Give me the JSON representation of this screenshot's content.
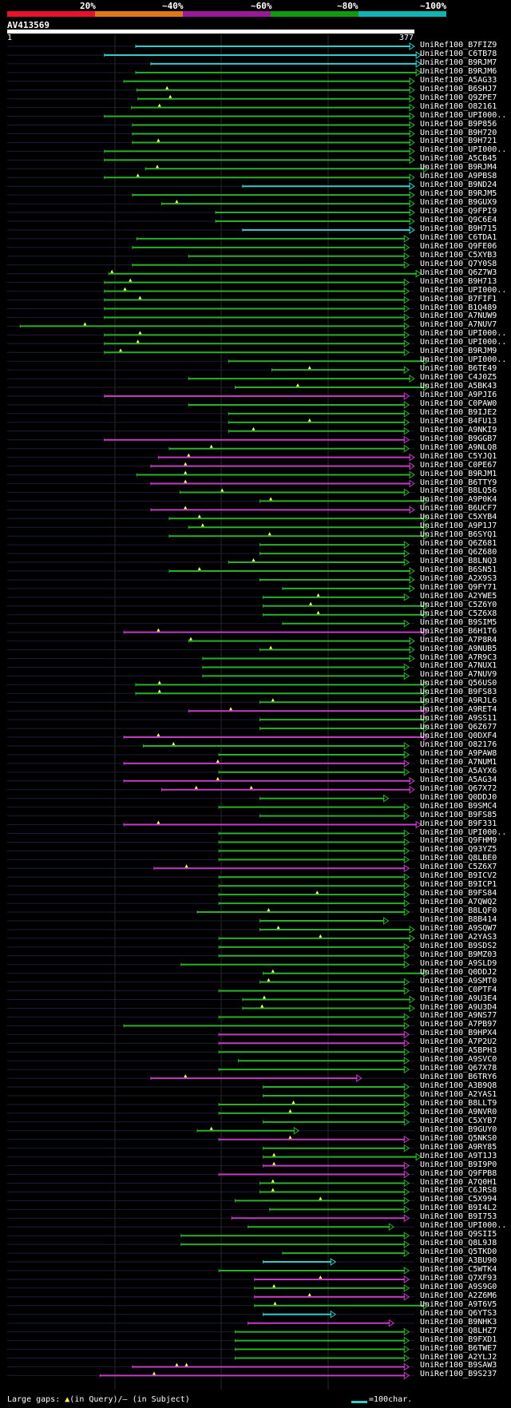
{
  "scale": {
    "labels": [
      "20%",
      "~40%",
      "~60%",
      "~80%",
      "~100%"
    ],
    "colors": [
      "#e8132a",
      "#e07818",
      "#9a199a",
      "#109a10",
      "#10b4b4"
    ]
  },
  "query": {
    "id": "AV413569",
    "start": "1",
    "end": "377"
  },
  "colors": {
    "green": "#2ab02a",
    "magenta": "#c43cc4",
    "cyan": "#33cccc",
    "gap": "#ffff66"
  },
  "hits": [
    {
      "label": "UniRef100_B7FIZ9",
      "s": 119,
      "e": 377,
      "c": "cyan",
      "a": []
    },
    {
      "label": "UniRef100_C6TB78",
      "s": 90,
      "e": 383,
      "c": "cyan",
      "a": []
    },
    {
      "label": "UniRef100_B9RJM7",
      "s": 133,
      "e": 383,
      "c": "cyan",
      "a": []
    },
    {
      "label": "UniRef100_B9RJM6",
      "s": 119,
      "e": 383,
      "c": "green",
      "a": []
    },
    {
      "label": "UniRef100_A5AG33",
      "s": 108,
      "e": 377,
      "c": "green",
      "a": []
    },
    {
      "label": "UniRef100_B6SHJ7",
      "s": 120,
      "e": 377,
      "c": "green",
      "a": [
        148
      ]
    },
    {
      "label": "UniRef100_Q9ZPE7",
      "s": 121,
      "e": 377,
      "c": "green",
      "a": [
        151
      ]
    },
    {
      "label": "UniRef100_O82161",
      "s": 115,
      "e": 377,
      "c": "green",
      "a": [
        141
      ]
    },
    {
      "label": "UniRef100_UPI000..",
      "s": 90,
      "e": 377,
      "c": "green",
      "a": []
    },
    {
      "label": "UniRef100_B9P856",
      "s": 116,
      "e": 377,
      "c": "green",
      "a": []
    },
    {
      "label": "UniRef100_B9H720",
      "s": 116,
      "e": 377,
      "c": "green",
      "a": []
    },
    {
      "label": "UniRef100_B9H721",
      "s": 116,
      "e": 377,
      "c": "green",
      "a": [
        140
      ]
    },
    {
      "label": "UniRef100_UPI000..",
      "s": 90,
      "e": 377,
      "c": "green",
      "a": []
    },
    {
      "label": "UniRef100_A5CB45",
      "s": 90,
      "e": 377,
      "c": "green",
      "a": []
    },
    {
      "label": "UniRef100_B9RJM4",
      "s": 128,
      "e": 390,
      "c": "green",
      "a": [
        139
      ]
    },
    {
      "label": "UniRef100_A9PBS8",
      "s": 90,
      "e": 377,
      "c": "green",
      "a": [
        121
      ]
    },
    {
      "label": "UniRef100_B9ND24",
      "s": 218,
      "e": 377,
      "c": "cyan",
      "a": []
    },
    {
      "label": "UniRef100_B9RJM5",
      "s": 116,
      "e": 377,
      "c": "green",
      "a": []
    },
    {
      "label": "UniRef100_B9GUX9",
      "s": 143,
      "e": 377,
      "c": "green",
      "a": [
        157
      ]
    },
    {
      "label": "UniRef100_Q9FPI9",
      "s": 193,
      "e": 377,
      "c": "green",
      "a": []
    },
    {
      "label": "UniRef100_Q9C6E4",
      "s": 193,
      "e": 377,
      "c": "green",
      "a": []
    },
    {
      "label": "UniRef100_B9H715",
      "s": 218,
      "e": 377,
      "c": "cyan",
      "a": []
    },
    {
      "label": "UniRef100_C6TDA1",
      "s": 120,
      "e": 372,
      "c": "green",
      "a": []
    },
    {
      "label": "UniRef100_Q9FE06",
      "s": 116,
      "e": 372,
      "c": "green",
      "a": []
    },
    {
      "label": "UniRef100_C5XYB3",
      "s": 168,
      "e": 372,
      "c": "green",
      "a": []
    },
    {
      "label": "UniRef100_Q7Y0S8",
      "s": 116,
      "e": 372,
      "c": "green",
      "a": []
    },
    {
      "label": "UniRef100_Q6Z7W3",
      "s": 94,
      "e": 383,
      "c": "green",
      "a": [
        97
      ]
    },
    {
      "label": "UniRef100_B9H713",
      "s": 90,
      "e": 372,
      "c": "green",
      "a": [
        114
      ]
    },
    {
      "label": "UniRef100_UPI000..",
      "s": 90,
      "e": 372,
      "c": "green",
      "a": [
        109
      ]
    },
    {
      "label": "UniRef100_B7FIF1",
      "s": 90,
      "e": 372,
      "c": "green",
      "a": [
        123
      ]
    },
    {
      "label": "UniRef100_B1Q489",
      "s": 90,
      "e": 372,
      "c": "green",
      "a": []
    },
    {
      "label": "UniRef100_A7NUW9",
      "s": 90,
      "e": 372,
      "c": "green",
      "a": []
    },
    {
      "label": "UniRef100_A7NUV7",
      "s": 12,
      "e": 372,
      "c": "green",
      "a": [
        72
      ]
    },
    {
      "label": "UniRef100_UPI000..",
      "s": 90,
      "e": 372,
      "c": "green",
      "a": [
        123
      ]
    },
    {
      "label": "UniRef100_UPI000..",
      "s": 90,
      "e": 372,
      "c": "green",
      "a": [
        121
      ]
    },
    {
      "label": "UniRef100_B9RJM9",
      "s": 90,
      "e": 372,
      "c": "green",
      "a": [
        105
      ]
    },
    {
      "label": "UniRef100_UPI000..",
      "s": 205,
      "e": 390,
      "c": "green",
      "a": []
    },
    {
      "label": "UniRef100_B6TE49",
      "s": 245,
      "e": 372,
      "c": "green",
      "a": [
        280
      ]
    },
    {
      "label": "UniRef100_C4J0Z5",
      "s": 168,
      "e": 377,
      "c": "green",
      "a": []
    },
    {
      "label": "UniRef100_A5BK43",
      "s": 211,
      "e": 390,
      "c": "green",
      "a": [
        269
      ]
    },
    {
      "label": "UniRef100_A9PJI6",
      "s": 90,
      "e": 372,
      "c": "magenta",
      "a": []
    },
    {
      "label": "UniRef100_C0PAW0",
      "s": 168,
      "e": 372,
      "c": "green",
      "a": []
    },
    {
      "label": "UniRef100_B9IJE2",
      "s": 205,
      "e": 372,
      "c": "green",
      "a": []
    },
    {
      "label": "UniRef100_B4FU13",
      "s": 205,
      "e": 372,
      "c": "green",
      "a": [
        280
      ]
    },
    {
      "label": "UniRef100_A9NKI9",
      "s": 205,
      "e": 372,
      "c": "green",
      "a": [
        228
      ]
    },
    {
      "label": "UniRef100_B9GGB7",
      "s": 90,
      "e": 372,
      "c": "magenta",
      "a": []
    },
    {
      "label": "UniRef100_A9NLQ8",
      "s": 150,
      "e": 372,
      "c": "green",
      "a": [
        189
      ]
    },
    {
      "label": "UniRef100_C5YJQ1",
      "s": 140,
      "e": 377,
      "c": "magenta",
      "a": [
        168
      ]
    },
    {
      "label": "UniRef100_C0PE67",
      "s": 133,
      "e": 377,
      "c": "magenta",
      "a": [
        165
      ]
    },
    {
      "label": "UniRef100_B9RJM1",
      "s": 120,
      "e": 377,
      "c": "green",
      "a": [
        165
      ]
    },
    {
      "label": "UniRef100_B6TTY9",
      "s": 133,
      "e": 377,
      "c": "magenta",
      "a": [
        165
      ]
    },
    {
      "label": "UniRef100_B8LQ56",
      "s": 160,
      "e": 372,
      "c": "green",
      "a": [
        199
      ]
    },
    {
      "label": "UniRef100_A9P0K4",
      "s": 234,
      "e": 390,
      "c": "green",
      "a": [
        244
      ]
    },
    {
      "label": "UniRef100_B6UCF7",
      "s": 133,
      "e": 377,
      "c": "magenta",
      "a": [
        165
      ]
    },
    {
      "label": "UniRef100_C5XYB4",
      "s": 150,
      "e": 390,
      "c": "green",
      "a": [
        178
      ]
    },
    {
      "label": "UniRef100_A9P1J7",
      "s": 168,
      "e": 390,
      "c": "green",
      "a": [
        181
      ]
    },
    {
      "label": "UniRef100_B6SYQ1",
      "s": 150,
      "e": 390,
      "c": "green",
      "a": [
        243
      ]
    },
    {
      "label": "UniRef100_Q6Z681",
      "s": 234,
      "e": 372,
      "c": "green",
      "a": []
    },
    {
      "label": "UniRef100_Q6Z680",
      "s": 234,
      "e": 372,
      "c": "green",
      "a": []
    },
    {
      "label": "UniRef100_B8LNQ3",
      "s": 205,
      "e": 372,
      "c": "green",
      "a": [
        228
      ]
    },
    {
      "label": "UniRef100_B6SN51",
      "s": 150,
      "e": 377,
      "c": "green",
      "a": [
        178
      ]
    },
    {
      "label": "UniRef100_A2X9S3",
      "s": 234,
      "e": 377,
      "c": "green",
      "a": []
    },
    {
      "label": "UniRef100_Q9FY71",
      "s": 255,
      "e": 377,
      "c": "green",
      "a": []
    },
    {
      "label": "UniRef100_A2YWE5",
      "s": 237,
      "e": 372,
      "c": "green",
      "a": [
        288
      ]
    },
    {
      "label": "UniRef100_C5Z6Y0",
      "s": 237,
      "e": 390,
      "c": "green",
      "a": [
        281
      ]
    },
    {
      "label": "UniRef100_C5Z6X8",
      "s": 237,
      "e": 390,
      "c": "green",
      "a": [
        288
      ]
    },
    {
      "label": "UniRef100_B9SIM5",
      "s": 255,
      "e": 372,
      "c": "green",
      "a": []
    },
    {
      "label": "UniRef100_B6H1T6",
      "s": 108,
      "e": 390,
      "c": "magenta",
      "a": [
        140
      ]
    },
    {
      "label": "UniRef100_A7P8R4",
      "s": 168,
      "e": 377,
      "c": "green",
      "a": [
        170
      ]
    },
    {
      "label": "UniRef100_A9NUB5",
      "s": 234,
      "e": 377,
      "c": "green",
      "a": [
        244
      ]
    },
    {
      "label": "UniRef100_A7R9C3",
      "s": 181,
      "e": 377,
      "c": "green",
      "a": []
    },
    {
      "label": "UniRef100_A7NUX1",
      "s": 181,
      "e": 372,
      "c": "green",
      "a": []
    },
    {
      "label": "UniRef100_A7NUV9",
      "s": 181,
      "e": 372,
      "c": "green",
      "a": []
    },
    {
      "label": "UniRef100_Q56US0",
      "s": 119,
      "e": 390,
      "c": "green",
      "a": [
        141
      ]
    },
    {
      "label": "UniRef100_B9FS83",
      "s": 119,
      "e": 390,
      "c": "green",
      "a": [
        141
      ]
    },
    {
      "label": "UniRef100_A9RJL6",
      "s": 234,
      "e": 390,
      "c": "green",
      "a": [
        246
      ]
    },
    {
      "label": "UniRef100_A9RET4",
      "s": 168,
      "e": 390,
      "c": "magenta",
      "a": [
        207
      ]
    },
    {
      "label": "UniRef100_A9SS11",
      "s": 234,
      "e": 390,
      "c": "green",
      "a": []
    },
    {
      "label": "UniRef100_Q6Z677",
      "s": 234,
      "e": 390,
      "c": "green",
      "a": []
    },
    {
      "label": "UniRef100_Q0DXF4",
      "s": 108,
      "e": 390,
      "c": "magenta",
      "a": [
        140
      ]
    },
    {
      "label": "UniRef100_O82176",
      "s": 126,
      "e": 372,
      "c": "green",
      "a": [
        154
      ]
    },
    {
      "label": "UniRef100_A9PAW8",
      "s": 196,
      "e": 372,
      "c": "green",
      "a": []
    },
    {
      "label": "UniRef100_A7NUM1",
      "s": 108,
      "e": 372,
      "c": "magenta",
      "a": [
        195
      ]
    },
    {
      "label": "UniRef100_A5AYX6",
      "s": 196,
      "e": 372,
      "c": "green",
      "a": []
    },
    {
      "label": "UniRef100_A5AG34",
      "s": 108,
      "e": 377,
      "c": "magenta",
      "a": [
        195
      ]
    },
    {
      "label": "UniRef100_Q67X72",
      "s": 143,
      "e": 377,
      "c": "magenta",
      "a": [
        175,
        226
      ]
    },
    {
      "label": "UniRef100_Q0DDJ0",
      "s": 234,
      "e": 353,
      "c": "green",
      "a": []
    },
    {
      "label": "UniRef100_B9SMC4",
      "s": 196,
      "e": 372,
      "c": "green",
      "a": []
    },
    {
      "label": "UniRef100_B9FS85",
      "s": 234,
      "e": 372,
      "c": "green",
      "a": []
    },
    {
      "label": "UniRef100_B9F331",
      "s": 108,
      "e": 383,
      "c": "magenta",
      "a": [
        140
      ]
    },
    {
      "label": "UniRef100_UPI000..",
      "s": 196,
      "e": 372,
      "c": "green",
      "a": []
    },
    {
      "label": "UniRef100_Q9FHM9",
      "s": 196,
      "e": 372,
      "c": "green",
      "a": []
    },
    {
      "label": "UniRef100_Q93YZ5",
      "s": 196,
      "e": 372,
      "c": "green",
      "a": []
    },
    {
      "label": "UniRef100_Q8LBE0",
      "s": 196,
      "e": 372,
      "c": "green",
      "a": []
    },
    {
      "label": "UniRef100_C5Z6X7",
      "s": 136,
      "e": 372,
      "c": "magenta",
      "a": [
        166
      ]
    },
    {
      "label": "UniRef100_B9ICV2",
      "s": 196,
      "e": 372,
      "c": "green",
      "a": []
    },
    {
      "label": "UniRef100_B9ICP1",
      "s": 196,
      "e": 372,
      "c": "green",
      "a": []
    },
    {
      "label": "UniRef100_B9FS84",
      "s": 196,
      "e": 372,
      "c": "green",
      "a": [
        287
      ]
    },
    {
      "label": "UniRef100_A7QWQ2",
      "s": 196,
      "e": 372,
      "c": "green",
      "a": []
    },
    {
      "label": "UniRef100_B8LQF0",
      "s": 176,
      "e": 372,
      "c": "green",
      "a": [
        242
      ]
    },
    {
      "label": "UniRef100_B8B414",
      "s": 234,
      "e": 353,
      "c": "green",
      "a": []
    },
    {
      "label": "UniRef100_A9SQW7",
      "s": 234,
      "e": 377,
      "c": "green",
      "a": [
        251
      ]
    },
    {
      "label": "UniRef100_A2YAS3",
      "s": 196,
      "e": 377,
      "c": "green",
      "a": [
        290
      ]
    },
    {
      "label": "UniRef100_B9SDS2",
      "s": 196,
      "e": 372,
      "c": "green",
      "a": []
    },
    {
      "label": "UniRef100_B9MZ03",
      "s": 196,
      "e": 372,
      "c": "green",
      "a": []
    },
    {
      "label": "UniRef100_A9SLD9",
      "s": 161,
      "e": 372,
      "c": "green",
      "a": []
    },
    {
      "label": "UniRef100_Q0DDJ2",
      "s": 237,
      "e": 390,
      "c": "green",
      "a": [
        246
      ]
    },
    {
      "label": "UniRef100_A9SMT0",
      "s": 234,
      "e": 372,
      "c": "green",
      "a": [
        242
      ]
    },
    {
      "label": "UniRef100_C0PTF4",
      "s": 196,
      "e": 372,
      "c": "green",
      "a": []
    },
    {
      "label": "UniRef100_A9U3E4",
      "s": 218,
      "e": 377,
      "c": "green",
      "a": [
        238
      ]
    },
    {
      "label": "UniRef100_A9U3D4",
      "s": 218,
      "e": 377,
      "c": "green",
      "a": [
        236
      ]
    },
    {
      "label": "UniRef100_A9NS77",
      "s": 196,
      "e": 372,
      "c": "green",
      "a": []
    },
    {
      "label": "UniRef100_A7PB97",
      "s": 108,
      "e": 372,
      "c": "green",
      "a": []
    },
    {
      "label": "UniRef100_B9HPX4",
      "s": 196,
      "e": 372,
      "c": "magenta",
      "a": []
    },
    {
      "label": "UniRef100_A7P2U2",
      "s": 196,
      "e": 372,
      "c": "magenta",
      "a": []
    },
    {
      "label": "UniRef100_A5BPH3",
      "s": 196,
      "e": 372,
      "c": "green",
      "a": []
    },
    {
      "label": "UniRef100_A9SVC0",
      "s": 214,
      "e": 372,
      "c": "green",
      "a": []
    },
    {
      "label": "UniRef100_Q67X78",
      "s": 196,
      "e": 372,
      "c": "green",
      "a": []
    },
    {
      "label": "UniRef100_B6TRY6",
      "s": 133,
      "e": 328,
      "c": "magenta",
      "a": [
        165
      ]
    },
    {
      "label": "UniRef100_A3B9Q8",
      "s": 237,
      "e": 372,
      "c": "green",
      "a": []
    },
    {
      "label": "UniRef100_A2YAS1",
      "s": 237,
      "e": 372,
      "c": "green",
      "a": []
    },
    {
      "label": "UniRef100_B8LLT9",
      "s": 196,
      "e": 372,
      "c": "green",
      "a": [
        265
      ]
    },
    {
      "label": "UniRef100_A9NVR0",
      "s": 196,
      "e": 372,
      "c": "green",
      "a": [
        262
      ]
    },
    {
      "label": "UniRef100_C5XYB7",
      "s": 237,
      "e": 372,
      "c": "green",
      "a": []
    },
    {
      "label": "UniRef100_B9GUY0",
      "s": 176,
      "e": 270,
      "c": "green",
      "a": [
        189
      ]
    },
    {
      "label": "UniRef100_Q5NKS0",
      "s": 196,
      "e": 372,
      "c": "magenta",
      "a": [
        262
      ]
    },
    {
      "label": "UniRef100_A9RY85",
      "s": 237,
      "e": 372,
      "c": "green",
      "a": []
    },
    {
      "label": "UniRef100_A9T1J3",
      "s": 237,
      "e": 383,
      "c": "green",
      "a": [
        247
      ]
    },
    {
      "label": "UniRef100_B9I9P0",
      "s": 237,
      "e": 372,
      "c": "magenta",
      "a": [
        247
      ]
    },
    {
      "label": "UniRef100_Q9FPB8",
      "s": 196,
      "e": 372,
      "c": "magenta",
      "a": []
    },
    {
      "label": "UniRef100_A7Q0H1",
      "s": 234,
      "e": 372,
      "c": "green",
      "a": [
        246
      ]
    },
    {
      "label": "UniRef100_C6JRS8",
      "s": 234,
      "e": 372,
      "c": "green",
      "a": [
        246
      ]
    },
    {
      "label": "UniRef100_C5X994",
      "s": 211,
      "e": 372,
      "c": "green",
      "a": [
        290
      ]
    },
    {
      "label": "UniRef100_B9I4L2",
      "s": 243,
      "e": 372,
      "c": "green",
      "a": []
    },
    {
      "label": "UniRef100_B9I753",
      "s": 208,
      "e": 372,
      "c": "magenta",
      "a": []
    },
    {
      "label": "UniRef100_UPI000..",
      "s": 223,
      "e": 358,
      "c": "green",
      "a": []
    },
    {
      "label": "UniRef100_Q9SII5",
      "s": 161,
      "e": 372,
      "c": "green",
      "a": []
    },
    {
      "label": "UniRef100_Q8L9J8",
      "s": 161,
      "e": 372,
      "c": "green",
      "a": []
    },
    {
      "label": "UniRef100_Q5TKD0",
      "s": 255,
      "e": 372,
      "c": "green",
      "a": []
    },
    {
      "label": "UniRef100_A3BU90",
      "s": 237,
      "e": 304,
      "c": "cyan",
      "a": []
    },
    {
      "label": "UniRef100_C5WTK4",
      "s": 196,
      "e": 372,
      "c": "green",
      "a": []
    },
    {
      "label": "UniRef100_Q7XF93",
      "s": 229,
      "e": 372,
      "c": "magenta",
      "a": [
        290
      ]
    },
    {
      "label": "UniRef100_A9S9G0",
      "s": 229,
      "e": 372,
      "c": "green",
      "a": [
        247
      ]
    },
    {
      "label": "UniRef100_A2Z6M6",
      "s": 229,
      "e": 372,
      "c": "magenta",
      "a": [
        280
      ]
    },
    {
      "label": "UniRef100_A9T6V5",
      "s": 229,
      "e": 390,
      "c": "green",
      "a": [
        248
      ]
    },
    {
      "label": "UniRef100_Q6YTS3",
      "s": 237,
      "e": 304,
      "c": "cyan",
      "a": []
    },
    {
      "label": "UniRef100_B9NHK3",
      "s": 223,
      "e": 358,
      "c": "magenta",
      "a": []
    },
    {
      "label": "UniRef100_Q8LHZ7",
      "s": 211,
      "e": 372,
      "c": "green",
      "a": []
    },
    {
      "label": "UniRef100_B9FXD1",
      "s": 211,
      "e": 372,
      "c": "green",
      "a": []
    },
    {
      "label": "UniRef100_B6TWE7",
      "s": 211,
      "e": 372,
      "c": "green",
      "a": []
    },
    {
      "label": "UniRef100_A2YLJ2",
      "s": 211,
      "e": 372,
      "c": "green",
      "a": []
    },
    {
      "label": "UniRef100_B9SAW3",
      "s": 116,
      "e": 372,
      "c": "magenta",
      "a": [
        157,
        166
      ]
    },
    {
      "label": "UniRef100_B9S237",
      "s": 86,
      "e": 372,
      "c": "magenta",
      "a": [
        136
      ]
    }
  ],
  "footer": {
    "text": "Large gaps:",
    "q_mark": "▲",
    "q_text": "(in Query)/",
    "s_mark": "–",
    "s_text": " (in Subject)",
    "legend": "=100char."
  }
}
